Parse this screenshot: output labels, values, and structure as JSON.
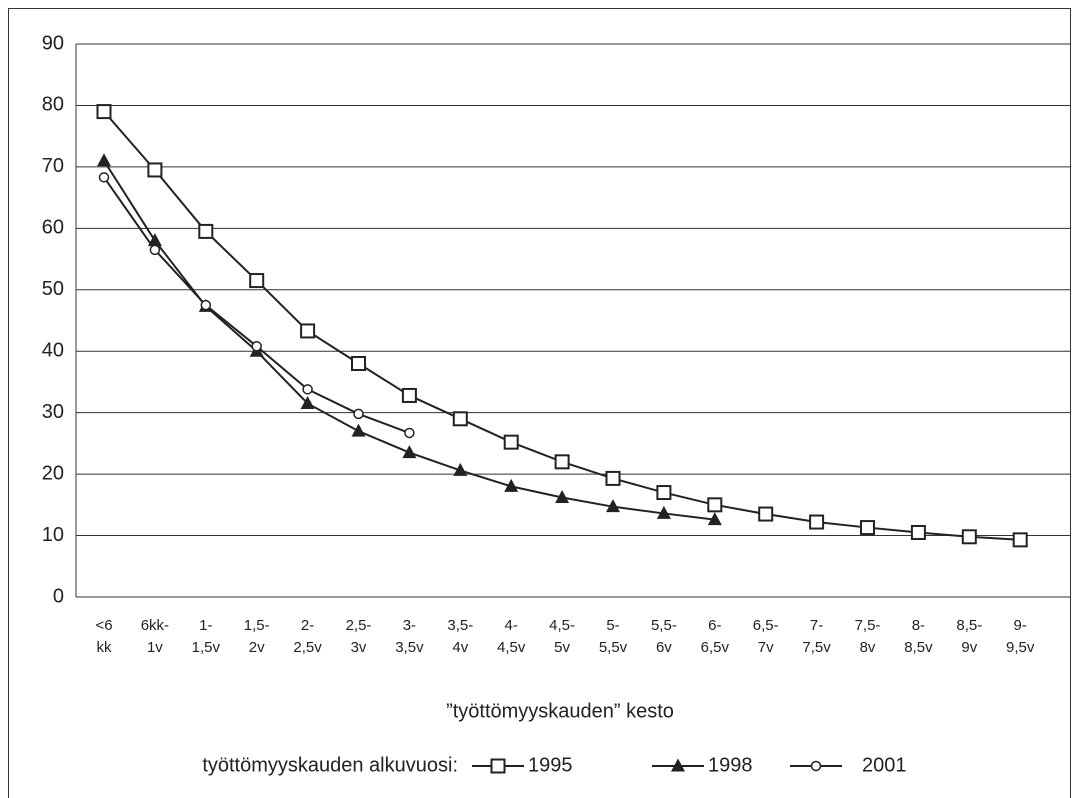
{
  "chart_data": {
    "type": "line",
    "x_label": "”työttömyyskauden” kesto",
    "legend_title": "työttömyyskauden alkuvuosi:",
    "categories": [
      "<6\nkk",
      "6kk-\n1v",
      "1-\n1,5v",
      "1,5-\n2v",
      "2-\n2,5v",
      "2,5-\n3v",
      "3-\n3,5v",
      "3,5-\n4v",
      "4-\n4,5v",
      "4,5-\n5v",
      "5-\n5,5v",
      "5,5-\n6v",
      "6-\n6,5v",
      "6,5-\n7v",
      "7-\n7,5v",
      "7,5-\n8v",
      "8-\n8,5v",
      "8,5-\n9v",
      "9-\n9,5v"
    ],
    "series": [
      {
        "name": "1995",
        "color": "#222222",
        "marker": "square",
        "values": [
          79,
          69.5,
          59.5,
          51.5,
          43.3,
          38,
          32.8,
          29,
          25.2,
          22,
          19.3,
          17,
          15,
          13.5,
          12.2,
          11.3,
          10.5,
          9.8,
          9.3
        ]
      },
      {
        "name": "1998",
        "color": "#222222",
        "marker": "triangle",
        "values": [
          71,
          58,
          47.3,
          40,
          31.5,
          27,
          23.5,
          20.6,
          18,
          16.2,
          14.7,
          13.6,
          12.6,
          null,
          null,
          null,
          null,
          null,
          null
        ]
      },
      {
        "name": "2001",
        "color": "#222222",
        "marker": "circle",
        "values": [
          68.3,
          56.5,
          47.5,
          40.8,
          33.8,
          29.8,
          26.7,
          null,
          null,
          null,
          null,
          null,
          null,
          null,
          null,
          null,
          null,
          null,
          null
        ]
      }
    ],
    "ylim": [
      0,
      90
    ],
    "yticks": [
      0,
      10,
      20,
      30,
      40,
      50,
      60,
      70,
      80,
      90
    ],
    "grid": true
  }
}
